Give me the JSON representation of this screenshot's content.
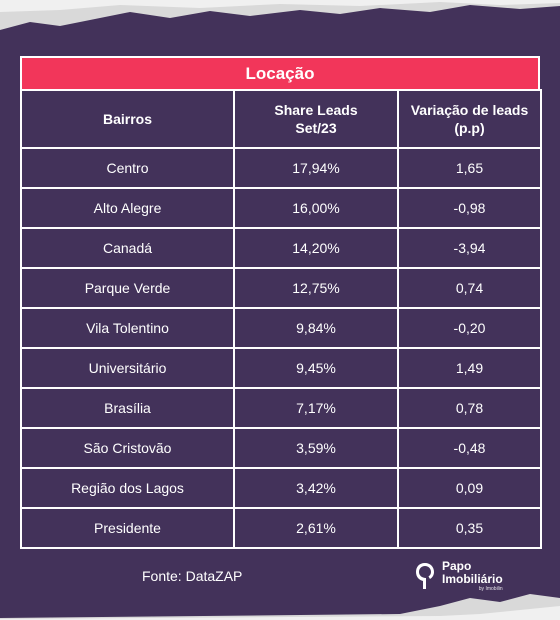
{
  "table": {
    "title": "Locação",
    "headers": [
      "Bairros",
      "Share Leads Set/23",
      "Variação de leads (p.p)"
    ],
    "rows": [
      [
        "Centro",
        "17,94%",
        "1,65"
      ],
      [
        "Alto Alegre",
        "16,00%",
        "-0,98"
      ],
      [
        "Canadá",
        "14,20%",
        "-3,94"
      ],
      [
        "Parque Verde",
        "12,75%",
        "0,74"
      ],
      [
        "Vila Tolentino",
        "9,84%",
        "-0,20"
      ],
      [
        "Universitário",
        "9,45%",
        "1,49"
      ],
      [
        "Brasília",
        "7,17%",
        "0,78"
      ],
      [
        "São Cristovão",
        "3,59%",
        "-0,48"
      ],
      [
        "Região dos Lagos",
        "3,42%",
        "0,09"
      ],
      [
        "Presidente",
        "2,61%",
        "0,35"
      ]
    ]
  },
  "footer": {
    "source": "Fonte: DataZAP",
    "logo_line1": "Papo",
    "logo_line2": "Imobiliário",
    "logo_sub": "by Imobilin"
  },
  "colors": {
    "background": "#43325a",
    "title_bar": "#f2365a",
    "border": "#ffffff"
  },
  "icons": {
    "logo": "papo-imobiliario-logo-icon"
  }
}
